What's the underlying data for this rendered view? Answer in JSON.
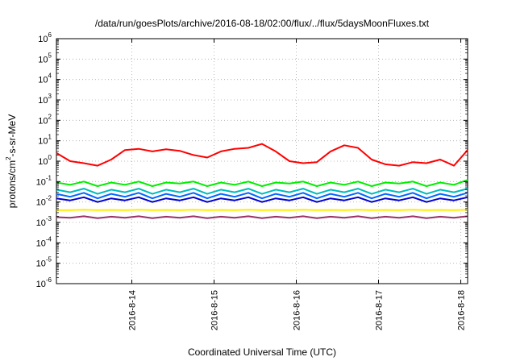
{
  "chart_data": {
    "type": "line",
    "title": "/data/run/goesPlots/archive/2016-08-18/02:00/flux/../flux/5daysMoonFluxes.txt",
    "xlabel": "Coordinated Universal Time (UTC)",
    "ylabel": {
      "base": "protons/cm",
      "sup": "2",
      "rest": "-s-sr-MeV"
    },
    "y_scale": "log",
    "ylim": [
      1e-06,
      1000000.0
    ],
    "xlim": [
      "2016-08-13T02:00",
      "2016-08-18T02:00"
    ],
    "x_ticks": [
      "2016-8-14",
      "2016-8-15",
      "2016-8-16",
      "2016-8-17",
      "2016-8-18"
    ],
    "y_ticks": [
      {
        "base": "10",
        "exp": "-6"
      },
      {
        "base": "10",
        "exp": "-5"
      },
      {
        "base": "10",
        "exp": "-4"
      },
      {
        "base": "10",
        "exp": "-3"
      },
      {
        "base": "10",
        "exp": "-2"
      },
      {
        "base": "10",
        "exp": "-1"
      },
      {
        "base": "10",
        "exp": "0"
      },
      {
        "base": "10",
        "exp": "1"
      },
      {
        "base": "10",
        "exp": "2"
      },
      {
        "base": "10",
        "exp": "3"
      },
      {
        "base": "10",
        "exp": "4"
      },
      {
        "base": "10",
        "exp": "5"
      },
      {
        "base": "10",
        "exp": "6"
      }
    ],
    "grid": true,
    "x": [
      "2016-08-13T02:00",
      "2016-08-13T06:00",
      "2016-08-13T10:00",
      "2016-08-13T14:00",
      "2016-08-13T18:00",
      "2016-08-13T22:00",
      "2016-08-14T02:00",
      "2016-08-14T06:00",
      "2016-08-14T10:00",
      "2016-08-14T14:00",
      "2016-08-14T18:00",
      "2016-08-14T22:00",
      "2016-08-15T02:00",
      "2016-08-15T06:00",
      "2016-08-15T10:00",
      "2016-08-15T14:00",
      "2016-08-15T18:00",
      "2016-08-15T22:00",
      "2016-08-16T02:00",
      "2016-08-16T06:00",
      "2016-08-16T10:00",
      "2016-08-16T14:00",
      "2016-08-16T18:00",
      "2016-08-16T22:00",
      "2016-08-17T02:00",
      "2016-08-17T06:00",
      "2016-08-17T10:00",
      "2016-08-17T14:00",
      "2016-08-17T18:00",
      "2016-08-17T22:00",
      "2016-08-18T02:00"
    ],
    "series": [
      {
        "color": "#ff0000",
        "values": [
          2.5,
          1.0,
          0.8,
          0.6,
          1.2,
          3.5,
          4.0,
          3.0,
          3.8,
          3.2,
          2.0,
          1.5,
          3.0,
          4.0,
          4.5,
          7.0,
          3.0,
          1.0,
          0.8,
          0.9,
          3.0,
          6.0,
          4.5,
          1.2,
          0.7,
          0.6,
          0.9,
          0.8,
          1.2,
          0.6,
          3.5
        ]
      },
      {
        "color": "#00ee00",
        "values": [
          0.09,
          0.07,
          0.1,
          0.06,
          0.09,
          0.07,
          0.1,
          0.06,
          0.09,
          0.08,
          0.1,
          0.06,
          0.09,
          0.07,
          0.1,
          0.06,
          0.09,
          0.08,
          0.1,
          0.06,
          0.09,
          0.07,
          0.1,
          0.06,
          0.09,
          0.08,
          0.1,
          0.06,
          0.09,
          0.07,
          0.12
        ]
      },
      {
        "color": "#00bbbb",
        "values": [
          0.04,
          0.03,
          0.045,
          0.025,
          0.04,
          0.03,
          0.045,
          0.025,
          0.04,
          0.03,
          0.045,
          0.025,
          0.04,
          0.03,
          0.045,
          0.025,
          0.04,
          0.03,
          0.045,
          0.025,
          0.04,
          0.03,
          0.045,
          0.025,
          0.04,
          0.03,
          0.045,
          0.025,
          0.04,
          0.03,
          0.045
        ]
      },
      {
        "color": "#0066ff",
        "values": [
          0.025,
          0.018,
          0.028,
          0.015,
          0.025,
          0.018,
          0.028,
          0.015,
          0.025,
          0.018,
          0.028,
          0.015,
          0.025,
          0.018,
          0.028,
          0.015,
          0.025,
          0.018,
          0.028,
          0.015,
          0.025,
          0.018,
          0.028,
          0.015,
          0.025,
          0.018,
          0.028,
          0.015,
          0.025,
          0.018,
          0.028
        ]
      },
      {
        "color": "#0000cc",
        "values": [
          0.015,
          0.012,
          0.017,
          0.01,
          0.015,
          0.012,
          0.017,
          0.01,
          0.015,
          0.012,
          0.017,
          0.01,
          0.015,
          0.012,
          0.017,
          0.01,
          0.015,
          0.012,
          0.017,
          0.01,
          0.015,
          0.012,
          0.017,
          0.01,
          0.015,
          0.012,
          0.017,
          0.01,
          0.015,
          0.012,
          0.017
        ]
      },
      {
        "color": "#ffee00",
        "values": [
          0.004,
          0.004,
          0.0042,
          0.004,
          0.0041,
          0.004,
          0.0042,
          0.004,
          0.0041,
          0.004,
          0.0042,
          0.004,
          0.0041,
          0.004,
          0.0042,
          0.004,
          0.0041,
          0.004,
          0.0042,
          0.004,
          0.0041,
          0.004,
          0.0042,
          0.004,
          0.0041,
          0.004,
          0.0042,
          0.004,
          0.0041,
          0.004,
          0.0042
        ]
      },
      {
        "color": "#993366",
        "values": [
          0.0018,
          0.0017,
          0.002,
          0.0016,
          0.0019,
          0.0017,
          0.002,
          0.0016,
          0.0019,
          0.0017,
          0.002,
          0.0016,
          0.0019,
          0.0017,
          0.002,
          0.0016,
          0.0019,
          0.0017,
          0.002,
          0.0016,
          0.0019,
          0.0017,
          0.002,
          0.0016,
          0.0019,
          0.0017,
          0.002,
          0.0016,
          0.0019,
          0.0017,
          0.002
        ]
      }
    ]
  }
}
